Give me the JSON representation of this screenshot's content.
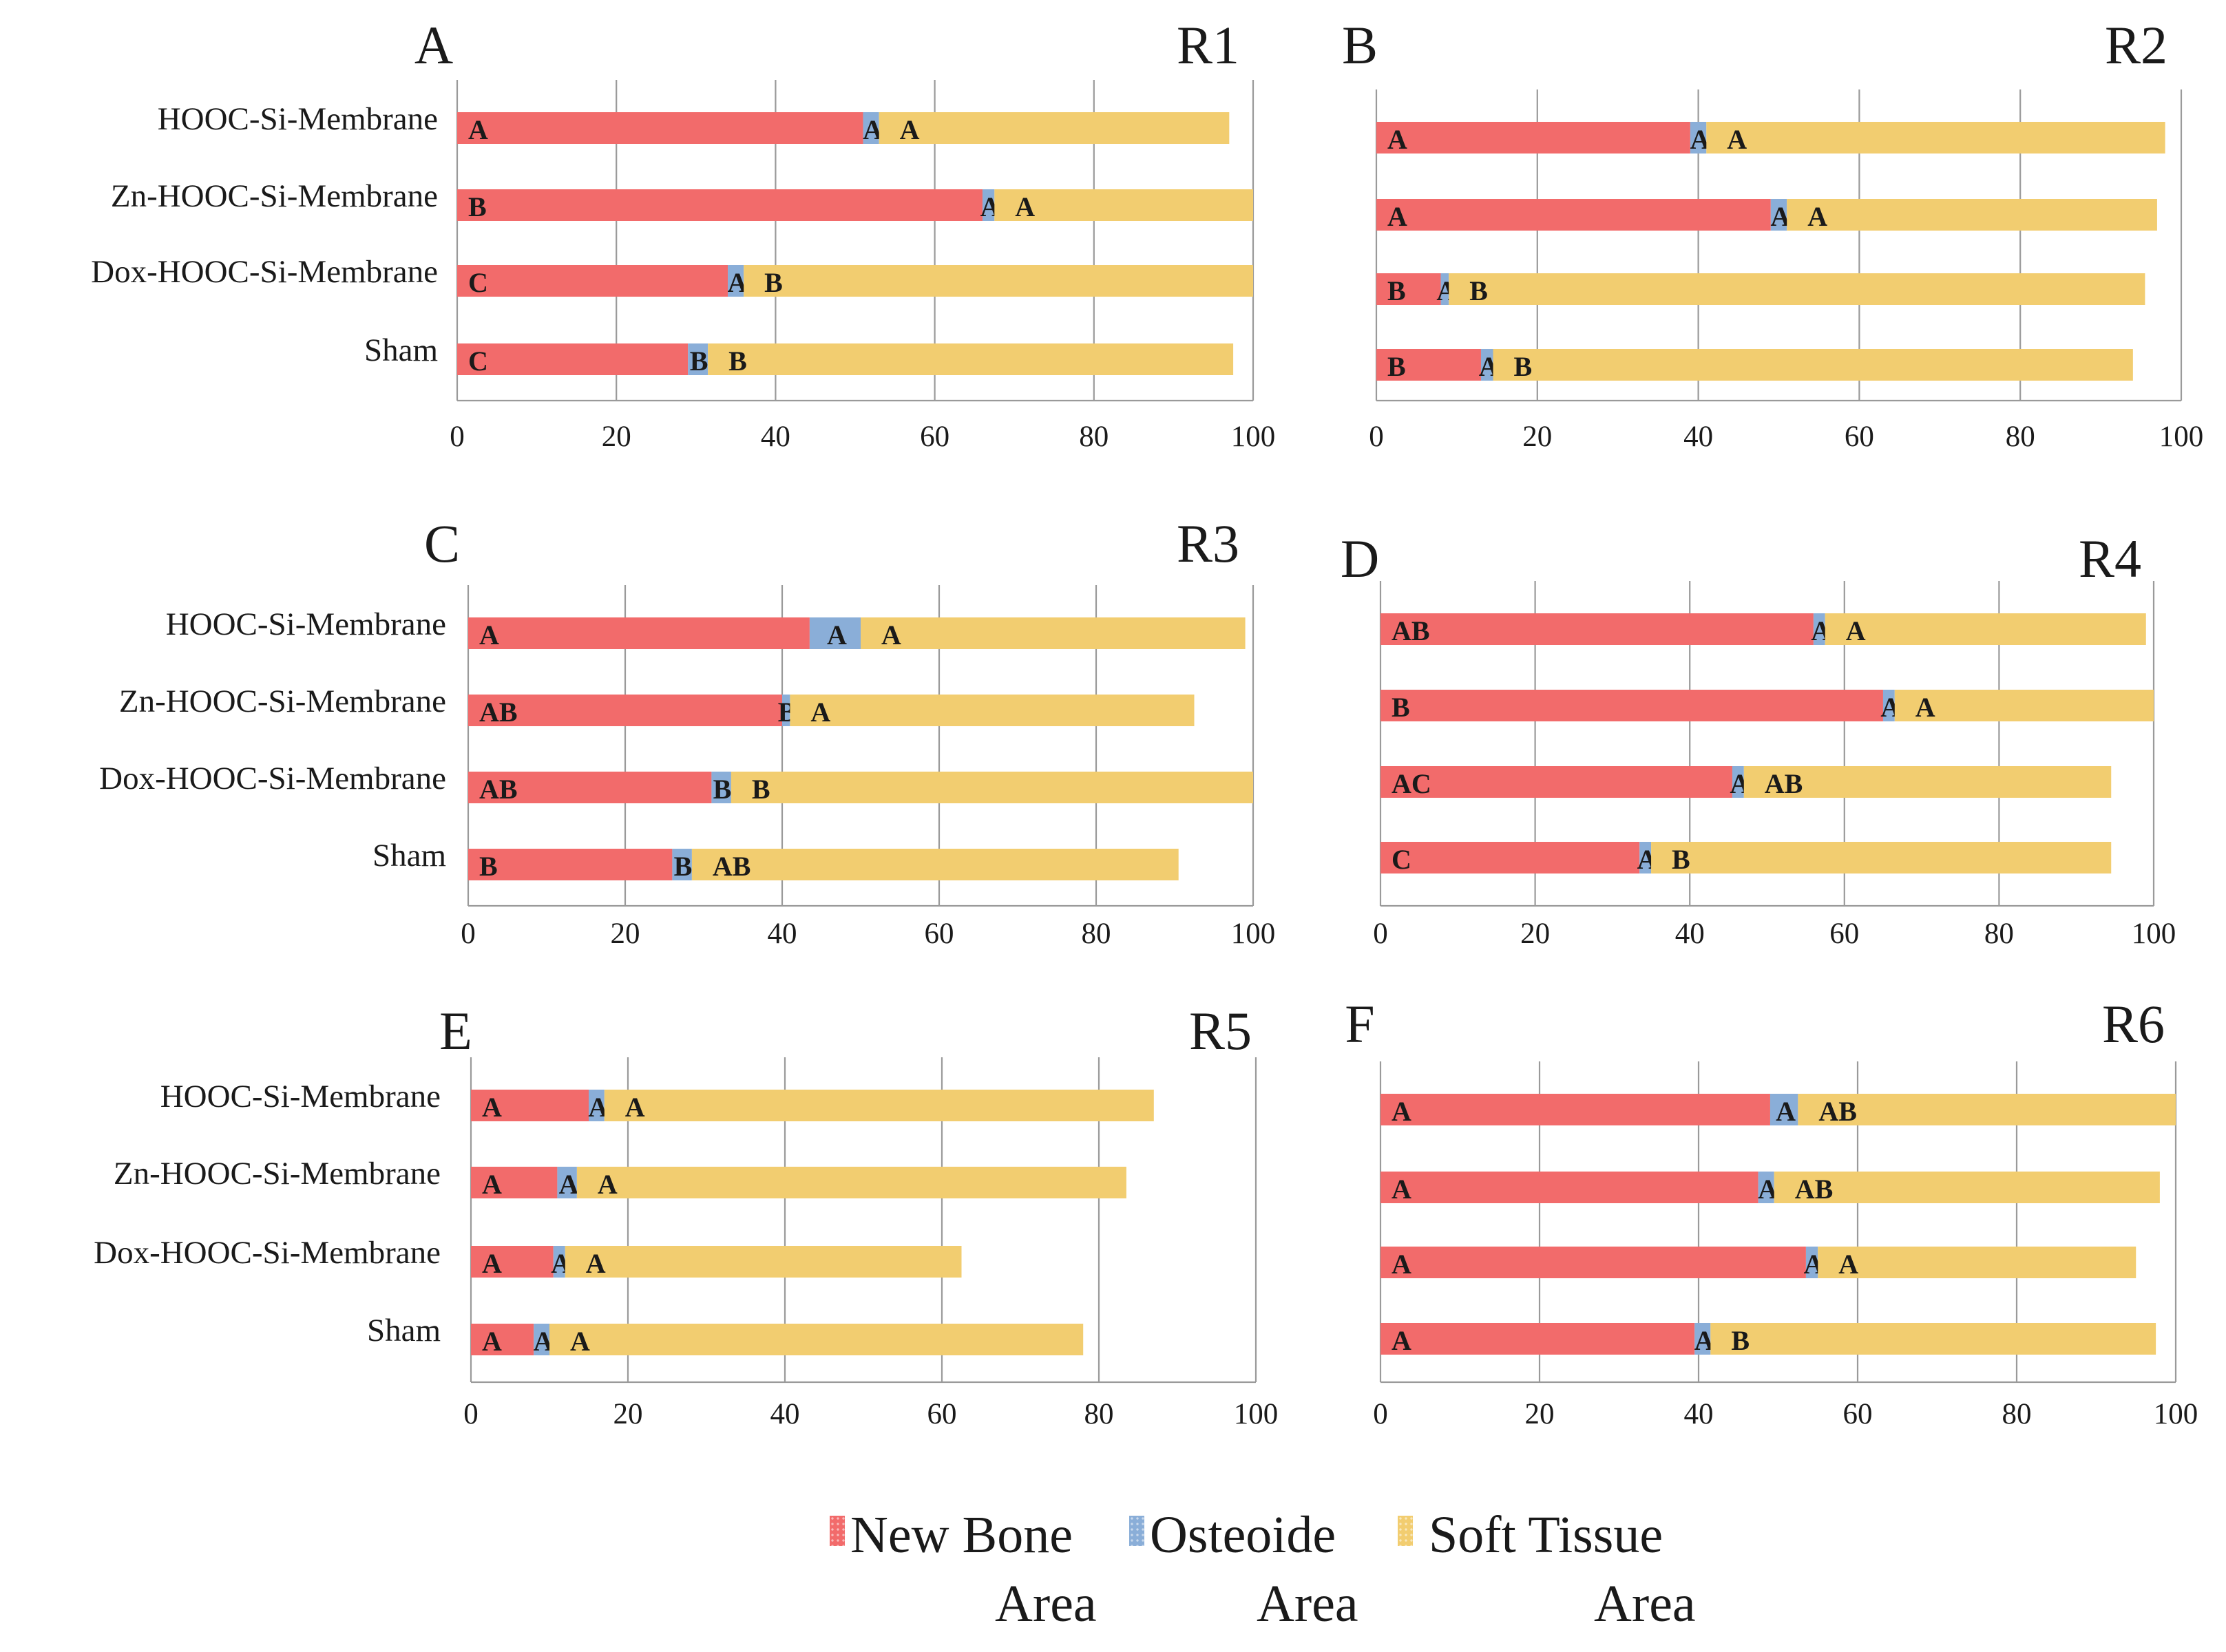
{
  "colors": {
    "new_bone": "#f26b6b",
    "osteoide": "#8aaed8",
    "soft_tissue": "#f2cd70",
    "grid": "#9a9a9a",
    "text": "#1a1a1a"
  },
  "legend": {
    "new_bone": {
      "line1": "New Bone",
      "line2": "Area"
    },
    "osteoide": {
      "line1": "Osteoide",
      "line2": "Area"
    },
    "soft_tissue": {
      "line1": "Soft Tissue",
      "line2": "Area"
    }
  },
  "chart_data": [
    {
      "panel": "A",
      "round": "R1",
      "type": "bar",
      "orientation": "horizontal",
      "stacked": true,
      "categories": [
        "HOOC-Si-Membrane",
        "Zn-HOOC-Si-Membrane",
        "Dox-HOOC-Si-Membrane",
        "Sham"
      ],
      "series": [
        {
          "name": "New Bone Area",
          "values": [
            51,
            66,
            34,
            29
          ]
        },
        {
          "name": "Osteoide Area",
          "values": [
            2,
            1.5,
            2,
            2.5
          ]
        },
        {
          "name": "Soft Tissue Area",
          "values": [
            44,
            32.5,
            64,
            66
          ]
        }
      ],
      "letters": [
        [
          "A",
          "A",
          "A"
        ],
        [
          "B",
          "A",
          "A"
        ],
        [
          "C",
          "A",
          "B"
        ],
        [
          "C",
          "B",
          "B"
        ]
      ],
      "xticks": [
        0,
        20,
        40,
        60,
        80,
        100
      ],
      "xlim": [
        0,
        100
      ]
    },
    {
      "panel": "B",
      "round": "R2",
      "type": "bar",
      "orientation": "horizontal",
      "stacked": true,
      "categories": [
        "HOOC-Si-Membrane",
        "Zn-HOOC-Si-Membrane",
        "Dox-HOOC-Si-Membrane",
        "Sham"
      ],
      "series": [
        {
          "name": "New Bone Area",
          "values": [
            39,
            49,
            8,
            13
          ]
        },
        {
          "name": "Osteoide Area",
          "values": [
            2,
            2,
            1,
            1.5
          ]
        },
        {
          "name": "Soft Tissue Area",
          "values": [
            57,
            46,
            86.5,
            79.5
          ]
        }
      ],
      "letters": [
        [
          "A",
          "A",
          "A"
        ],
        [
          "A",
          "A",
          "A"
        ],
        [
          "B",
          "A",
          "B"
        ],
        [
          "B",
          "A",
          "B"
        ]
      ],
      "xticks": [
        0,
        20,
        40,
        60,
        80,
        100
      ],
      "xlim": [
        0,
        100
      ]
    },
    {
      "panel": "C",
      "round": "R3",
      "type": "bar",
      "orientation": "horizontal",
      "stacked": true,
      "categories": [
        "HOOC-Si-Membrane",
        "Zn-HOOC-Si-Membrane",
        "Dox-HOOC-Si-Membrane",
        "Sham"
      ],
      "series": [
        {
          "name": "New Bone Area",
          "values": [
            43.5,
            40,
            31,
            26
          ]
        },
        {
          "name": "Osteoide Area",
          "values": [
            6.5,
            1,
            2.5,
            2.5
          ]
        },
        {
          "name": "Soft Tissue Area",
          "values": [
            49,
            51.5,
            66.5,
            62
          ]
        }
      ],
      "letters": [
        [
          "A",
          "A",
          "A"
        ],
        [
          "AB",
          "B",
          "A"
        ],
        [
          "AB",
          "B",
          "B"
        ],
        [
          "B",
          "B",
          "AB"
        ]
      ],
      "xticks": [
        0,
        20,
        40,
        60,
        80,
        100
      ],
      "xlim": [
        0,
        100
      ]
    },
    {
      "panel": "D",
      "round": "R4",
      "type": "bar",
      "orientation": "horizontal",
      "stacked": true,
      "categories": [
        "HOOC-Si-Membrane",
        "Zn-HOOC-Si-Membrane",
        "Dox-HOOC-Si-Membrane",
        "Sham"
      ],
      "series": [
        {
          "name": "New Bone Area",
          "values": [
            56,
            65,
            45.5,
            33.5
          ]
        },
        {
          "name": "Osteoide Area",
          "values": [
            1.5,
            1.5,
            1.5,
            1.5
          ]
        },
        {
          "name": "Soft Tissue Area",
          "values": [
            41.5,
            33.5,
            47.5,
            59.5
          ]
        }
      ],
      "letters": [
        [
          "AB",
          "A",
          "A"
        ],
        [
          "B",
          "A",
          "A"
        ],
        [
          "AC",
          "A",
          "AB"
        ],
        [
          "C",
          "A",
          "B"
        ]
      ],
      "xticks": [
        0,
        20,
        40,
        60,
        80,
        100
      ],
      "xlim": [
        0,
        100
      ]
    },
    {
      "panel": "E",
      "round": "R5",
      "type": "bar",
      "orientation": "horizontal",
      "stacked": true,
      "categories": [
        "HOOC-Si-Membrane",
        "Zn-HOOC-Si-Membrane",
        "Dox-HOOC-Si-Membrane",
        "Sham"
      ],
      "series": [
        {
          "name": "New Bone Area",
          "values": [
            15,
            11,
            10.5,
            8
          ]
        },
        {
          "name": "Osteoide Area",
          "values": [
            2,
            2.5,
            1.5,
            2
          ]
        },
        {
          "name": "Soft Tissue Area",
          "values": [
            70,
            70,
            50.5,
            68
          ]
        }
      ],
      "letters": [
        [
          "A",
          "A",
          "A"
        ],
        [
          "A",
          "A",
          "A"
        ],
        [
          "A",
          "A",
          "A"
        ],
        [
          "A",
          "A",
          "A"
        ]
      ],
      "xticks": [
        0,
        20,
        40,
        60,
        80,
        100
      ],
      "xlim": [
        0,
        100
      ]
    },
    {
      "panel": "F",
      "round": "R6",
      "type": "bar",
      "orientation": "horizontal",
      "stacked": true,
      "categories": [
        "HOOC-Si-Membrane",
        "Zn-HOOC-Si-Membrane",
        "Dox-HOOC-Si-Membrane",
        "Sham"
      ],
      "series": [
        {
          "name": "New Bone Area",
          "values": [
            49,
            47.5,
            53.5,
            39.5
          ]
        },
        {
          "name": "Osteoide Area",
          "values": [
            3.5,
            2,
            1.5,
            2
          ]
        },
        {
          "name": "Soft Tissue Area",
          "values": [
            47.5,
            48.5,
            40,
            56
          ]
        }
      ],
      "letters": [
        [
          "A",
          "A",
          "AB"
        ],
        [
          "A",
          "A",
          "AB"
        ],
        [
          "A",
          "A",
          "A"
        ],
        [
          "A",
          "A",
          "B"
        ]
      ],
      "xticks": [
        0,
        20,
        40,
        60,
        80,
        100
      ],
      "xlim": [
        0,
        100
      ]
    }
  ]
}
